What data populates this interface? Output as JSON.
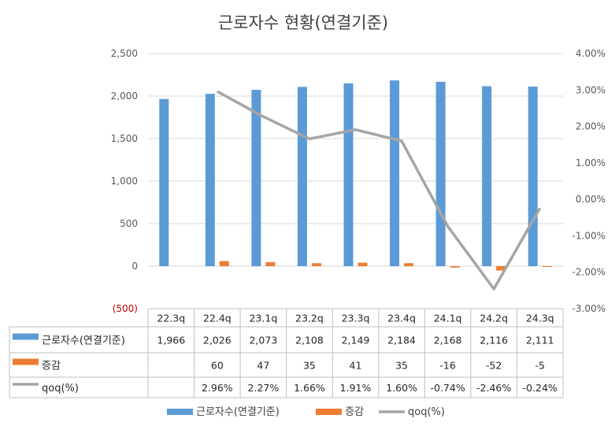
{
  "chart_data": {
    "type": "bar",
    "title": "근로자수 현황(연결기준)",
    "categories": [
      "22.3q",
      "22.4q",
      "23.1q",
      "23.2q",
      "23.3q",
      "23.4q",
      "24.1q",
      "24.2q",
      "24.3q"
    ],
    "series": [
      {
        "name": "근로자수(연결기준)",
        "type": "bar",
        "axis": "left",
        "color": "#5b9bd5",
        "values": [
          1966,
          2026,
          2073,
          2108,
          2149,
          2184,
          2168,
          2116,
          2111
        ],
        "labels": [
          "1,966",
          "2,026",
          "2,073",
          "2,108",
          "2,149",
          "2,184",
          "2,168",
          "2,116",
          "2,111"
        ]
      },
      {
        "name": "증감",
        "type": "bar",
        "axis": "left",
        "color": "#ed7d31",
        "values": [
          null,
          60,
          47,
          35,
          41,
          35,
          -16,
          -52,
          -5
        ],
        "labels": [
          "",
          "60",
          "47",
          "35",
          "41",
          "35",
          "-16",
          "-52",
          "-5"
        ]
      },
      {
        "name": "qoq(%)",
        "type": "line",
        "axis": "right",
        "color": "#a5a5a5",
        "values": [
          null,
          2.96,
          2.27,
          1.66,
          1.91,
          1.6,
          -0.74,
          -2.46,
          -0.24
        ],
        "labels": [
          "",
          "2.96%",
          "2.27%",
          "1.66%",
          "1.91%",
          "1.60%",
          "-0.74%",
          "-2.46%",
          "-0.24%"
        ]
      }
    ],
    "ylim": [
      -500,
      2500
    ],
    "y_ticks": [
      "(500)",
      "0",
      "500",
      "1,000",
      "1,500",
      "2,000",
      "2,500"
    ],
    "y_tick_values": [
      -500,
      0,
      500,
      1000,
      1500,
      2000,
      2500
    ],
    "y2lim": [
      -3,
      4
    ],
    "y2_ticks": [
      "-3.00%",
      "-2.00%",
      "-1.00%",
      "0.00%",
      "1.00%",
      "2.00%",
      "3.00%",
      "4.00%"
    ],
    "y2_tick_values": [
      -3,
      -2,
      -1,
      0,
      1,
      2,
      3,
      4
    ],
    "grid": true,
    "legend_position": "bottom",
    "data_table": true
  }
}
